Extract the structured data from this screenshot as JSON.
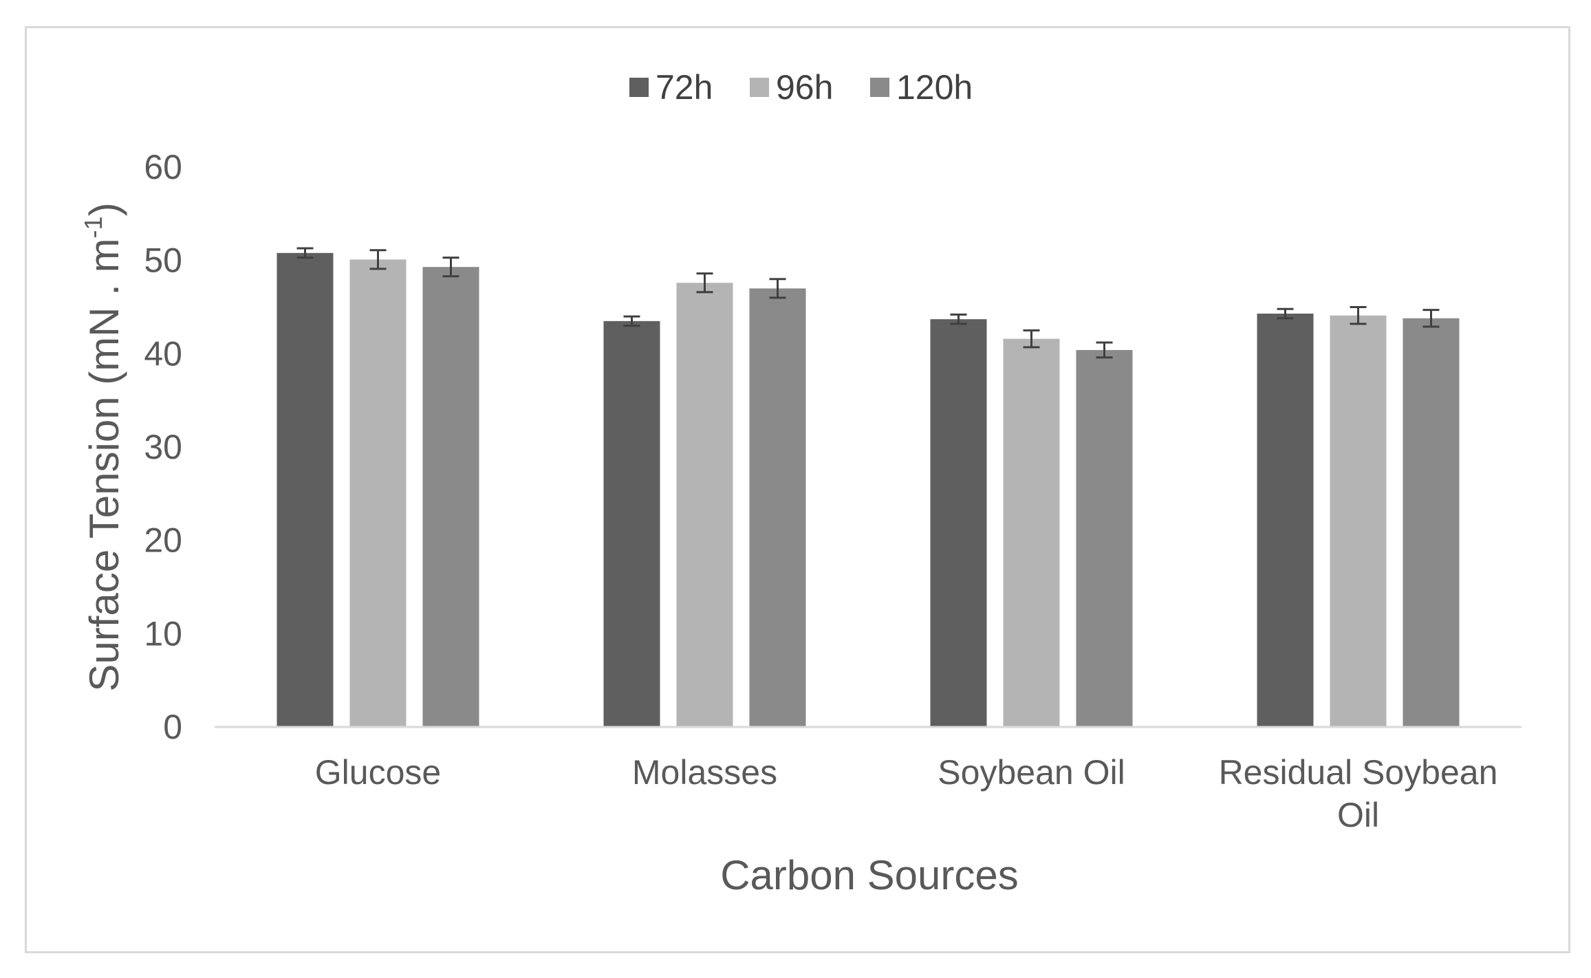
{
  "chart_data": {
    "type": "bar",
    "title": "",
    "xlabel": "Carbon Sources",
    "ylabel": {
      "text": "Surface Tension (mN . m",
      "sup": "-1",
      "tail": ")"
    },
    "categories": [
      [
        "Glucose"
      ],
      [
        "Molasses"
      ],
      [
        "Soybean Oil"
      ],
      [
        "Residual Soybean",
        "Oil"
      ]
    ],
    "series": [
      {
        "name": "72h",
        "color": "#5f5f5f",
        "values": [
          50.8,
          43.5,
          43.7,
          44.3
        ],
        "errors": [
          0.5,
          0.5,
          0.5,
          0.5
        ]
      },
      {
        "name": "96h",
        "color": "#b4b4b4",
        "values": [
          50.1,
          47.6,
          41.6,
          44.1
        ],
        "errors": [
          1.0,
          1.0,
          0.9,
          0.9
        ]
      },
      {
        "name": "120h",
        "color": "#8a8a8a",
        "values": [
          49.3,
          47.0,
          40.4,
          43.8
        ],
        "errors": [
          1.0,
          1.0,
          0.8,
          0.9
        ]
      }
    ],
    "ylim": [
      0,
      60
    ],
    "yticks": [
      "0",
      "10",
      "20",
      "30",
      "40",
      "50",
      "60"
    ],
    "grid": false,
    "legend": "top-center"
  }
}
